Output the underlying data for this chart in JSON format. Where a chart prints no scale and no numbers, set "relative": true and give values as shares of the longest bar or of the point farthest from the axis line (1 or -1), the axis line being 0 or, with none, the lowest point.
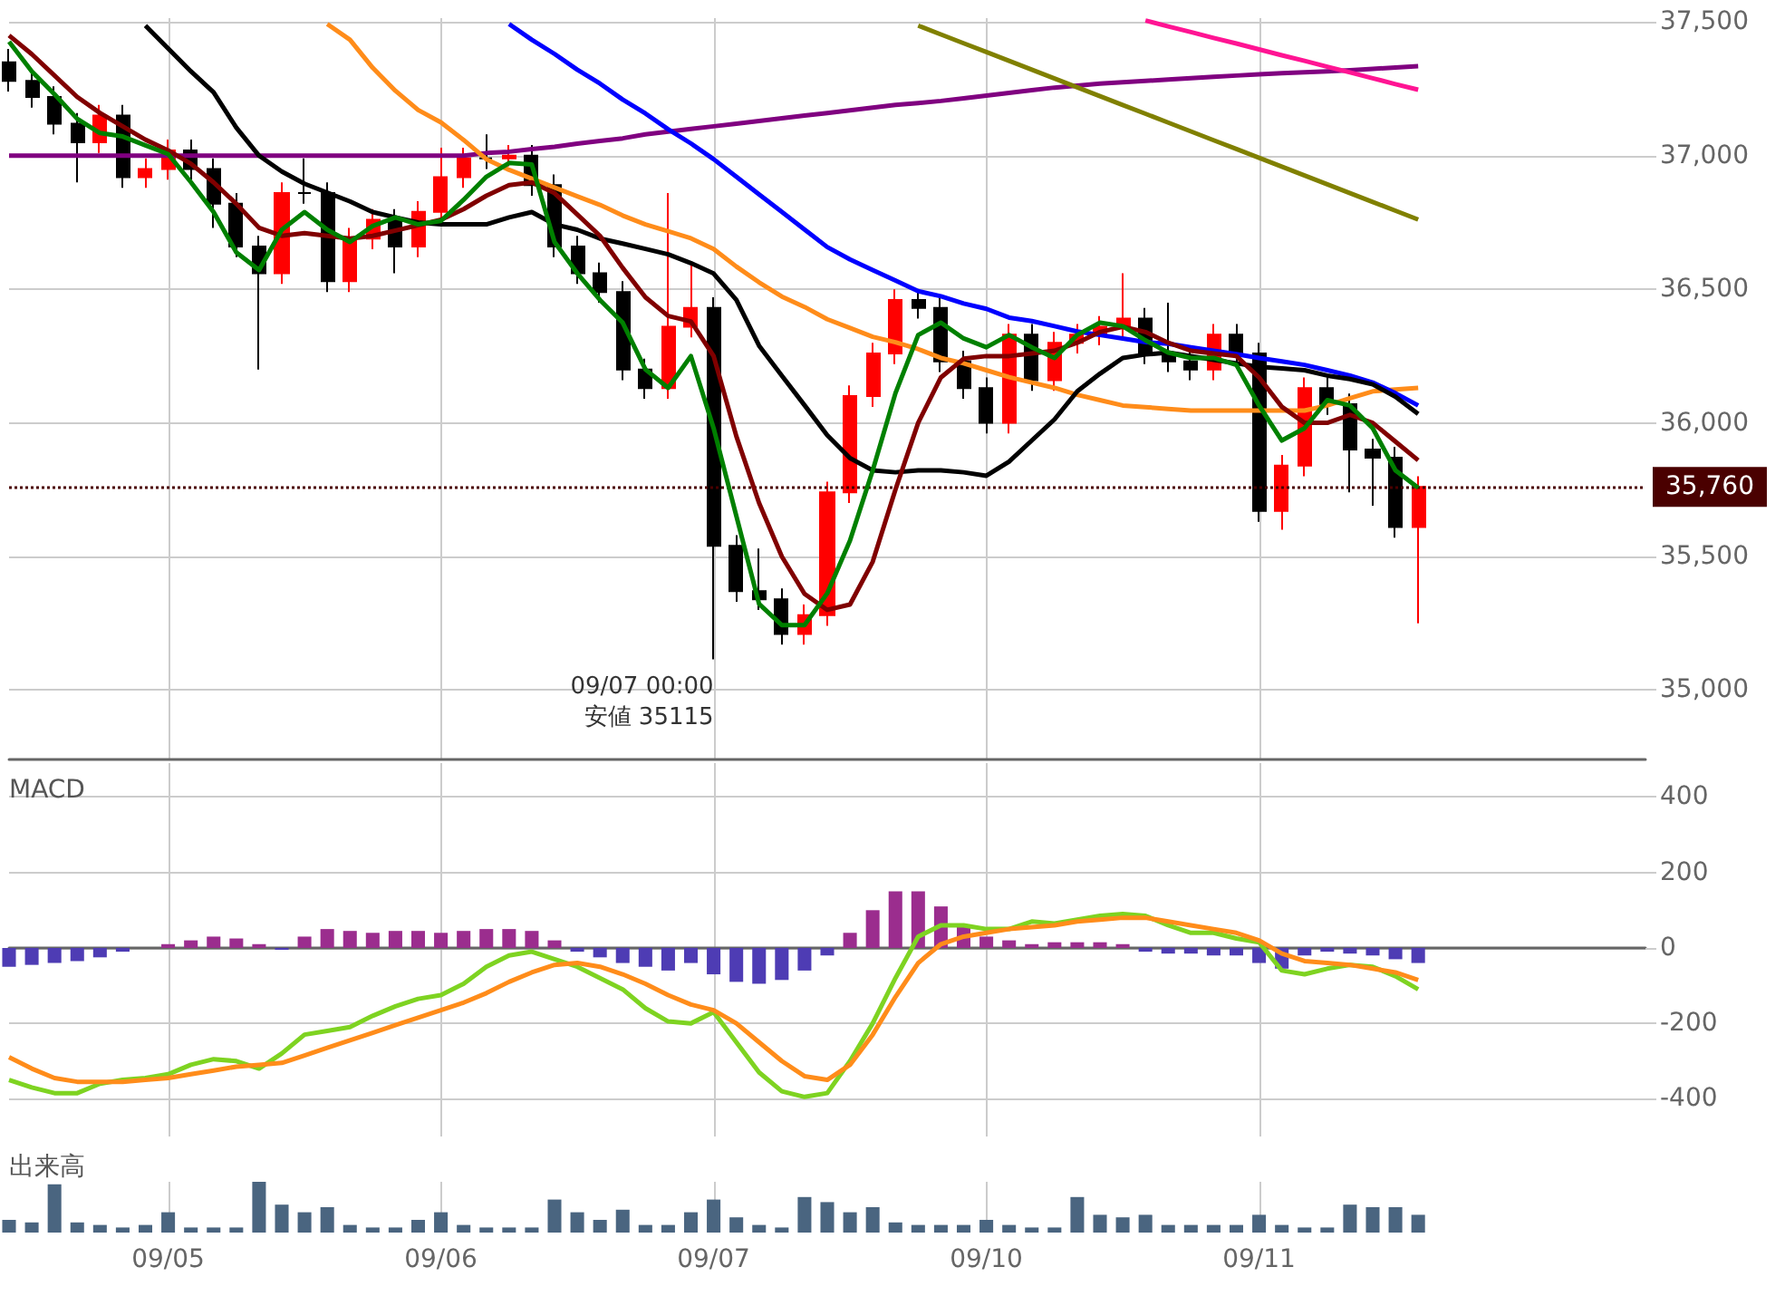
{
  "chart_data": [
    {
      "type": "candlestick",
      "categories": [
        null,
        null,
        null,
        null,
        null,
        null,
        null,
        "09/05",
        null,
        null,
        null,
        null,
        null,
        null,
        null,
        null,
        null,
        null,
        null,
        "09/06",
        null,
        null,
        null,
        null,
        null,
        null,
        null,
        null,
        null,
        null,
        null,
        "09/07",
        null,
        null,
        null,
        null,
        null,
        null,
        null,
        null,
        null,
        null,
        null,
        "09/10",
        null,
        null,
        null,
        null,
        null,
        null,
        null,
        null,
        null,
        null,
        null,
        "09/11",
        null,
        null,
        null,
        null,
        null,
        null,
        null,
        null,
        null,
        null,
        null,
        null,
        null,
        null,
        null,
        null,
        null
      ],
      "ohlc": [
        [
          37350,
          37400,
          37240,
          37280
        ],
        [
          37280,
          37320,
          37180,
          37220
        ],
        [
          37220,
          37260,
          37080,
          37120
        ],
        [
          37120,
          37160,
          36900,
          37050
        ],
        [
          37050,
          37190,
          37010,
          37150
        ],
        [
          37150,
          37190,
          36880,
          36920
        ],
        [
          36920,
          36990,
          36880,
          36950
        ],
        [
          36950,
          37060,
          36910,
          37020
        ],
        [
          37020,
          37060,
          36910,
          36950
        ],
        [
          36950,
          36990,
          36730,
          36820
        ],
        [
          36820,
          36860,
          36620,
          36660
        ],
        [
          36660,
          36700,
          36200,
          36560
        ],
        [
          36560,
          36900,
          36520,
          36860
        ],
        [
          36860,
          36990,
          36820,
          36860
        ],
        [
          36860,
          36900,
          36490,
          36530
        ],
        [
          36530,
          36730,
          36490,
          36690
        ],
        [
          36690,
          36800,
          36650,
          36760
        ],
        [
          36760,
          36800,
          36560,
          36660
        ],
        [
          36660,
          36830,
          36620,
          36790
        ],
        [
          36790,
          37030,
          36750,
          36920
        ],
        [
          36920,
          37030,
          36880,
          36990
        ],
        [
          36990,
          37080,
          36950,
          36990
        ],
        [
          36990,
          37040,
          36960,
          37000
        ],
        [
          37000,
          37040,
          36850,
          36890
        ],
        [
          36890,
          36930,
          36620,
          36660
        ],
        [
          36660,
          36700,
          36520,
          36560
        ],
        [
          36560,
          36600,
          36450,
          36490
        ],
        [
          36490,
          36530,
          36160,
          36200
        ],
        [
          36200,
          36240,
          36090,
          36130
        ],
        [
          36130,
          36860,
          36090,
          36360
        ],
        [
          36360,
          36600,
          36320,
          36430
        ],
        [
          36430,
          36470,
          35115,
          35540
        ],
        [
          35540,
          35580,
          35330,
          35370
        ],
        [
          35370,
          35530,
          35300,
          35340
        ],
        [
          35340,
          35380,
          35170,
          35210
        ],
        [
          35210,
          35320,
          35170,
          35280
        ],
        [
          35280,
          35780,
          35240,
          35740
        ],
        [
          35740,
          36140,
          35700,
          36100
        ],
        [
          36100,
          36300,
          36060,
          36260
        ],
        [
          36260,
          36500,
          36220,
          36460
        ],
        [
          36460,
          36500,
          36390,
          36430
        ],
        [
          36430,
          36470,
          36190,
          36230
        ],
        [
          36230,
          36270,
          36090,
          36130
        ],
        [
          36130,
          36170,
          35960,
          36000
        ],
        [
          36000,
          36370,
          35960,
          36330
        ],
        [
          36330,
          36370,
          36120,
          36160
        ],
        [
          36160,
          36340,
          36120,
          36300
        ],
        [
          36300,
          36370,
          36260,
          36330
        ],
        [
          36330,
          36400,
          36290,
          36360
        ],
        [
          36360,
          36560,
          36320,
          36390
        ],
        [
          36390,
          36430,
          36220,
          36260
        ],
        [
          36260,
          36450,
          36190,
          36230
        ],
        [
          36230,
          36270,
          36160,
          36200
        ],
        [
          36200,
          36370,
          36160,
          36330
        ],
        [
          36330,
          36370,
          36220,
          36260
        ],
        [
          36260,
          36300,
          35630,
          35670
        ],
        [
          35670,
          35880,
          35600,
          35840
        ],
        [
          35840,
          36170,
          35800,
          36130
        ],
        [
          36130,
          36170,
          36030,
          36070
        ],
        [
          36070,
          36110,
          35740,
          35900
        ],
        [
          35900,
          35940,
          35690,
          35870
        ],
        [
          35870,
          35910,
          35570,
          35610
        ],
        [
          35610,
          35800,
          35250,
          35760
        ],
        null,
        null,
        null,
        null,
        null,
        null,
        null,
        null,
        null,
        null
      ],
      "colors": [
        "#000000",
        "#000000",
        "#000000",
        "#000000",
        "#ff0000",
        "#000000",
        "#ff0000",
        "#ff0000",
        "#000000",
        "#000000",
        "#000000",
        "#000000",
        "#ff0000",
        "#000000",
        "#000000",
        "#ff0000",
        "#ff0000",
        "#000000",
        "#ff0000",
        "#ff0000",
        "#ff0000",
        "#000000",
        "#ff0000",
        "#000000",
        "#000000",
        "#000000",
        "#000000",
        "#000000",
        "#000000",
        "#ff0000",
        "#ff0000",
        "#000000",
        "#000000",
        "#000000",
        "#000000",
        "#ff0000",
        "#ff0000",
        "#ff0000",
        "#ff0000",
        "#ff0000",
        "#000000",
        "#000000",
        "#000000",
        "#000000",
        "#ff0000",
        "#000000",
        "#ff0000",
        "#ff0000",
        "#ff0000",
        "#ff0000",
        "#000000",
        "#000000",
        "#000000",
        "#ff0000",
        "#000000",
        "#000000",
        "#ff0000",
        "#ff0000",
        "#000000",
        "#000000",
        "#000000",
        "#000000",
        "#ff0000",
        null,
        null,
        null,
        null,
        null,
        null,
        null,
        null,
        null,
        null
      ],
      "series": [
        {
          "type": "line",
          "color": "#800080",
          "values": [
            37000,
            37000,
            37000,
            37000,
            37000,
            37000,
            37000,
            37000,
            37000,
            37000,
            37000,
            37000,
            37000,
            37000,
            37000,
            37000,
            37000,
            37000,
            37000,
            37000,
            37000,
            37010,
            37015,
            37025,
            37033,
            37045,
            37055,
            37065,
            37080,
            37090,
            37100,
            37110,
            37120,
            37130,
            37140,
            37150,
            37160,
            37170,
            37180,
            37190,
            37197,
            37205,
            37215,
            37225,
            37235,
            37245,
            37255,
            37262,
            37270,
            37275,
            37280,
            37285,
            37290,
            37295,
            37300,
            37305,
            37309,
            37312,
            37316,
            37320,
            37325,
            37330,
            37335,
            null,
            null,
            null,
            null,
            null,
            null,
            null,
            null,
            null,
            null
          ]
        },
        {
          "type": "line",
          "color": "#808000",
          "values": [
            null,
            null,
            null,
            null,
            null,
            null,
            null,
            null,
            null,
            null,
            null,
            null,
            null,
            null,
            null,
            null,
            null,
            null,
            null,
            null,
            null,
            null,
            null,
            null,
            null,
            null,
            null,
            null,
            null,
            null,
            null,
            null,
            null,
            null,
            null,
            null,
            null,
            null,
            null,
            null,
            37487,
            37454,
            37421,
            37388,
            37355,
            37322,
            37289,
            37256,
            37223,
            37190,
            37157,
            37124,
            37091,
            37058,
            37025,
            36992,
            36959,
            36926,
            36893,
            36860,
            36827,
            36794,
            36761,
            null,
            null,
            null,
            null,
            null,
            null,
            null,
            null,
            null,
            null
          ]
        },
        {
          "type": "line",
          "color": "#ff1493",
          "values": [
            null,
            null,
            null,
            null,
            null,
            null,
            null,
            null,
            null,
            null,
            null,
            null,
            null,
            null,
            null,
            null,
            null,
            null,
            null,
            null,
            null,
            null,
            null,
            null,
            null,
            null,
            null,
            null,
            null,
            null,
            null,
            null,
            null,
            null,
            null,
            null,
            null,
            null,
            null,
            null,
            null,
            null,
            null,
            null,
            null,
            null,
            null,
            null,
            null,
            null,
            37506,
            37484,
            37463,
            37441,
            37420,
            37398,
            37376,
            37355,
            37333,
            37312,
            37290,
            37268,
            37247,
            null,
            null,
            null,
            null,
            null,
            null,
            null,
            null,
            null,
            null
          ]
        },
        {
          "type": "line",
          "color": "#ff8c1a",
          "values": [
            null,
            null,
            null,
            null,
            null,
            null,
            null,
            null,
            null,
            null,
            null,
            null,
            null,
            null,
            37493,
            37434,
            37329,
            37243,
            37171,
            37125,
            37059,
            36987,
            36947,
            36914,
            36881,
            36848,
            36816,
            36776,
            36743,
            36717,
            36691,
            36651,
            36585,
            36526,
            36473,
            36434,
            36388,
            36355,
            36322,
            36302,
            36276,
            36243,
            36223,
            36197,
            36171,
            36151,
            36131,
            36105,
            36085,
            36065,
            36059,
            36052,
            36046,
            36046,
            36046,
            36046,
            36046,
            36046,
            36065,
            36092,
            36118,
            36125,
            36131,
            null,
            null,
            null,
            null,
            null,
            null,
            null,
            null,
            null,
            null
          ]
        },
        {
          "type": "line",
          "color": "#0000ff",
          "values": [
            null,
            null,
            null,
            null,
            null,
            null,
            null,
            null,
            null,
            null,
            null,
            null,
            null,
            null,
            null,
            null,
            null,
            null,
            null,
            null,
            null,
            null,
            37493,
            37434,
            37381,
            37322,
            37270,
            37210,
            37158,
            37099,
            37046,
            36987,
            36921,
            36855,
            36790,
            36724,
            36658,
            36612,
            36572,
            36533,
            36493,
            36474,
            36447,
            36427,
            36394,
            36381,
            36362,
            36342,
            36329,
            36316,
            36302,
            36296,
            36283,
            36270,
            36257,
            36243,
            36230,
            36217,
            36197,
            36177,
            36151,
            36111,
            36065,
            null,
            null,
            null,
            null,
            null,
            null,
            null,
            null,
            null,
            null
          ]
        },
        {
          "type": "line",
          "color": "#000000",
          "values": [
            null,
            null,
            null,
            null,
            null,
            null,
            37487,
            37401,
            37316,
            37237,
            37105,
            37000,
            36941,
            36895,
            36862,
            36829,
            36789,
            36769,
            36750,
            36743,
            36743,
            36743,
            36769,
            36789,
            36743,
            36723,
            36690,
            36671,
            36651,
            36631,
            36598,
            36559,
            36460,
            36289,
            36177,
            36066,
            35954,
            35868,
            35822,
            35815,
            35822,
            35822,
            35815,
            35802,
            35855,
            35934,
            36013,
            36118,
            36184,
            36243,
            36256,
            36263,
            36250,
            36236,
            36223,
            36210,
            36204,
            36197,
            36177,
            36164,
            36144,
            36098,
            36033,
            null,
            null,
            null,
            null,
            null,
            null,
            null,
            null,
            null,
            null
          ]
        },
        {
          "type": "line",
          "color": "#800000",
          "values": [
            37450,
            37380,
            37300,
            37220,
            37160,
            37110,
            37060,
            37020,
            36970,
            36900,
            36820,
            36730,
            36700,
            36710,
            36700,
            36690,
            36700,
            36720,
            36740,
            36760,
            36800,
            36850,
            36890,
            36900,
            36860,
            36780,
            36700,
            36580,
            36470,
            36400,
            36380,
            36250,
            35950,
            35700,
            35500,
            35360,
            35300,
            35320,
            35480,
            35750,
            36000,
            36170,
            36240,
            36250,
            36250,
            36260,
            36270,
            36300,
            36340,
            36360,
            36340,
            36300,
            36270,
            36260,
            36250,
            36170,
            36060,
            36000,
            36000,
            36030,
            36000,
            35930,
            35860,
            null,
            null,
            null,
            null,
            null,
            null,
            null,
            null,
            null,
            null
          ]
        },
        {
          "type": "line",
          "color": "#008000",
          "values": [
            37427,
            37316,
            37230,
            37138,
            37085,
            37072,
            37039,
            37006,
            36901,
            36789,
            36638,
            36572,
            36723,
            36789,
            36723,
            36677,
            36737,
            36769,
            36743,
            36756,
            36835,
            36921,
            36973,
            36967,
            36677,
            36560,
            36460,
            36375,
            36200,
            36131,
            36250,
            35980,
            35651,
            35322,
            35243,
            35243,
            35362,
            35559,
            35822,
            36111,
            36329,
            36375,
            36316,
            36283,
            36329,
            36283,
            36243,
            36329,
            36375,
            36362,
            36309,
            36263,
            36243,
            36243,
            36217,
            36065,
            35934,
            35980,
            36085,
            36065,
            35980,
            35822,
            35757,
            null,
            null,
            null,
            null,
            null,
            null,
            null,
            null,
            null,
            null
          ]
        }
      ],
      "ylim": [
        34740,
        37515
      ],
      "yticks": [
        {
          "value": 35000,
          "label": "35,000"
        },
        {
          "value": 35500,
          "label": "35,500"
        },
        {
          "value": 36000,
          "label": "36,000"
        },
        {
          "value": 36500,
          "label": "36,500"
        },
        {
          "value": 37000,
          "label": "37,000"
        },
        {
          "value": 37500,
          "label": "37,500"
        }
      ],
      "ref_lines": [
        {
          "axis": "y",
          "value": 35760,
          "label": "35,760",
          "color": "#4a0000",
          "line_style": "dotted"
        }
      ],
      "annotations": [
        {
          "text": "09/07 00:00",
          "x": "09/07",
          "y": 35115
        },
        {
          "text": "安値 35115",
          "x": "09/07",
          "y": 35115
        }
      ],
      "grid": true,
      "tick_labels": "y"
    },
    {
      "type": "bar",
      "title": "MACD",
      "categories": [
        null,
        null,
        null,
        null,
        null,
        null,
        null,
        "09/05",
        null,
        null,
        null,
        null,
        null,
        null,
        null,
        null,
        null,
        null,
        null,
        "09/06",
        null,
        null,
        null,
        null,
        null,
        null,
        null,
        null,
        null,
        null,
        null,
        "09/07",
        null,
        null,
        null,
        null,
        null,
        null,
        null,
        null,
        null,
        null,
        null,
        "09/10",
        null,
        null,
        null,
        null,
        null,
        null,
        null,
        null,
        null,
        null,
        null,
        "09/11",
        null,
        null,
        null,
        null,
        null,
        null,
        null,
        null,
        null,
        null,
        null,
        null,
        null,
        null,
        null,
        null,
        null
      ],
      "series": [
        {
          "type": "bar",
          "values": [
            -50,
            -45,
            -40,
            -35,
            -25,
            -10,
            0,
            10,
            20,
            30,
            25,
            10,
            -5,
            30,
            50,
            45,
            40,
            45,
            45,
            40,
            45,
            50,
            50,
            45,
            20,
            -10,
            -25,
            -40,
            -50,
            -60,
            -40,
            -70,
            -90,
            -95,
            -85,
            -60,
            -20,
            40,
            100,
            150,
            150,
            110,
            60,
            30,
            20,
            10,
            15,
            15,
            15,
            10,
            -10,
            -15,
            -15,
            -20,
            -20,
            -40,
            -55,
            -20,
            -10,
            -15,
            -20,
            -30,
            -40,
            null,
            null,
            null,
            null,
            null,
            null,
            null,
            null,
            null,
            null
          ],
          "colors": [
            "#4e3cb4",
            "#4e3cb4",
            "#4e3cb4",
            "#4e3cb4",
            "#4e3cb4",
            "#4e3cb4",
            "#9b2d8e",
            "#9b2d8e",
            "#9b2d8e",
            "#9b2d8e",
            "#9b2d8e",
            "#9b2d8e",
            "#4e3cb4",
            "#9b2d8e",
            "#9b2d8e",
            "#9b2d8e",
            "#9b2d8e",
            "#9b2d8e",
            "#9b2d8e",
            "#9b2d8e",
            "#9b2d8e",
            "#9b2d8e",
            "#9b2d8e",
            "#9b2d8e",
            "#9b2d8e",
            "#4e3cb4",
            "#4e3cb4",
            "#4e3cb4",
            "#4e3cb4",
            "#4e3cb4",
            "#4e3cb4",
            "#4e3cb4",
            "#4e3cb4",
            "#4e3cb4",
            "#4e3cb4",
            "#4e3cb4",
            "#4e3cb4",
            "#9b2d8e",
            "#9b2d8e",
            "#9b2d8e",
            "#9b2d8e",
            "#9b2d8e",
            "#9b2d8e",
            "#9b2d8e",
            "#9b2d8e",
            "#9b2d8e",
            "#9b2d8e",
            "#9b2d8e",
            "#9b2d8e",
            "#9b2d8e",
            "#4e3cb4",
            "#4e3cb4",
            "#4e3cb4",
            "#4e3cb4",
            "#4e3cb4",
            "#4e3cb4",
            "#4e3cb4",
            "#4e3cb4",
            "#4e3cb4",
            "#4e3cb4",
            "#4e3cb4",
            "#4e3cb4",
            "#4e3cb4",
            null,
            null,
            null,
            null,
            null,
            null,
            null,
            null,
            null,
            null
          ]
        },
        {
          "type": "line",
          "color": "#7ed321",
          "values": [
            -350,
            -370,
            -385,
            -385,
            -360,
            -350,
            -345,
            -335,
            -310,
            -295,
            -300,
            -320,
            -280,
            -230,
            -220,
            -210,
            -180,
            -155,
            -135,
            -125,
            -95,
            -50,
            -20,
            -10,
            -30,
            -50,
            -80,
            -110,
            -160,
            -195,
            -200,
            -170,
            -250,
            -330,
            -380,
            -395,
            -385,
            -300,
            -200,
            -80,
            30,
            60,
            60,
            50,
            50,
            70,
            65,
            75,
            85,
            90,
            85,
            60,
            40,
            40,
            25,
            15,
            -60,
            -70,
            -55,
            -45,
            -50,
            -75,
            -110,
            null,
            null,
            null,
            null,
            null,
            null,
            null,
            null,
            null,
            null
          ]
        },
        {
          "type": "line",
          "color": "#ff8c1a",
          "values": [
            -290,
            -320,
            -345,
            -355,
            -355,
            -355,
            -350,
            -345,
            -335,
            -325,
            -315,
            -310,
            -305,
            -285,
            -265,
            -245,
            -225,
            -205,
            -185,
            -165,
            -145,
            -120,
            -90,
            -65,
            -45,
            -40,
            -50,
            -70,
            -95,
            -125,
            -150,
            -165,
            -200,
            -250,
            -300,
            -340,
            -350,
            -310,
            -230,
            -130,
            -40,
            10,
            30,
            40,
            50,
            55,
            60,
            70,
            75,
            80,
            80,
            70,
            60,
            50,
            40,
            20,
            -15,
            -35,
            -40,
            -45,
            -55,
            -65,
            -85,
            null,
            null,
            null,
            null,
            null,
            null,
            null,
            null,
            null,
            null
          ]
        }
      ],
      "ylim": [
        -500,
        490
      ],
      "yticks": [
        -400,
        -200,
        0,
        200,
        400
      ],
      "grid": true,
      "tick_labels": "y"
    },
    {
      "type": "bar",
      "title": "出来高",
      "relative": true,
      "categories": [
        null,
        null,
        null,
        null,
        null,
        null,
        null,
        "09/05",
        null,
        null,
        null,
        null,
        null,
        null,
        null,
        null,
        null,
        null,
        null,
        "09/06",
        null,
        null,
        null,
        null,
        null,
        null,
        null,
        null,
        null,
        null,
        null,
        "09/07",
        null,
        null,
        null,
        null,
        null,
        null,
        null,
        null,
        null,
        null,
        null,
        "09/10",
        null,
        null,
        null,
        null,
        null,
        null,
        null,
        null,
        null,
        null,
        null,
        "09/11",
        null,
        null,
        null,
        null,
        null,
        null,
        null,
        null,
        null,
        null,
        null,
        null,
        null,
        null,
        null,
        null,
        null
      ],
      "values": [
        0.25,
        0.2,
        0.95,
        0.2,
        0.15,
        0.1,
        0.15,
        0.4,
        0.1,
        0.1,
        0.1,
        1,
        0.55,
        0.4,
        0.5,
        0.15,
        0.1,
        0.1,
        0.25,
        0.4,
        0.15,
        0.1,
        0.1,
        0.1,
        0.65,
        0.4,
        0.25,
        0.45,
        0.15,
        0.15,
        0.4,
        0.65,
        0.3,
        0.15,
        0.1,
        0.7,
        0.6,
        0.4,
        0.5,
        0.2,
        0.15,
        0.15,
        0.15,
        0.25,
        0.15,
        0.1,
        0.1,
        0.7,
        0.35,
        0.3,
        0.35,
        0.15,
        0.15,
        0.15,
        0.15,
        0.35,
        0.15,
        0.1,
        0.1,
        0.55,
        0.5,
        0.5,
        0.35,
        null,
        null,
        null,
        null,
        null,
        null,
        null,
        null,
        null,
        null
      ],
      "color": "#4a6580",
      "grid": "x",
      "tick_labels": "x"
    }
  ]
}
